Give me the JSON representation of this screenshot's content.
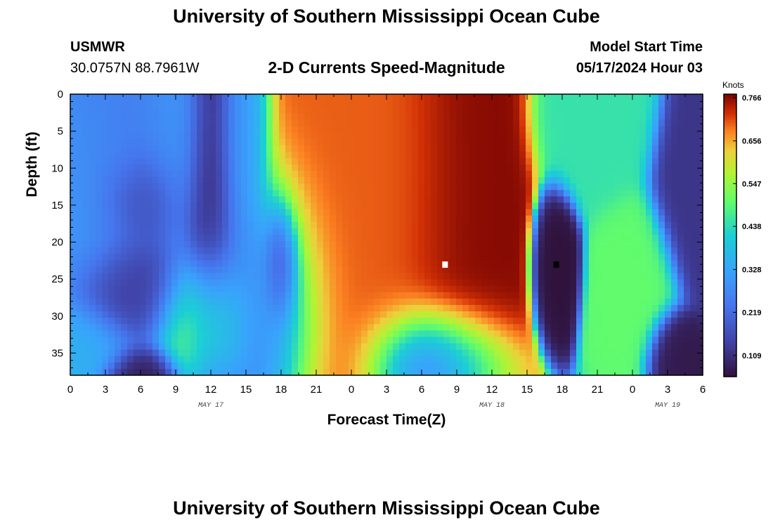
{
  "page": {
    "title_top": "University of Southern Mississippi Ocean Cube",
    "title_bottom": "University of Southern Mississippi Ocean Cube",
    "station_name": "USMWR",
    "station_coords": "30.0757N  88.7961W",
    "subtitle": "2-D Currents Speed-Magnitude",
    "model_label": "Model Start Time",
    "model_time": "05/17/2024 Hour 03"
  },
  "chart_data": {
    "type": "heatmap",
    "title": "2-D Currents Speed-Magnitude",
    "xlabel": "Forecast Time(Z)",
    "ylabel": "Depth (ft)",
    "x_ticks": [
      "0",
      "3",
      "6",
      "9",
      "12",
      "15",
      "18",
      "21",
      "0",
      "3",
      "6",
      "9",
      "12",
      "15",
      "18",
      "21",
      "0",
      "3",
      "6"
    ],
    "x_range_hours": [
      0,
      54
    ],
    "date_labels": [
      {
        "label": "MAY 17",
        "hour": 12
      },
      {
        "label": "MAY 18",
        "hour": 36
      },
      {
        "label": "MAY 19",
        "hour": 51
      }
    ],
    "y_ticks": [
      0,
      5,
      10,
      15,
      20,
      25,
      30,
      35
    ],
    "y_range": [
      0,
      38
    ],
    "y_inverted": true,
    "colorbar": {
      "unit": "Knots",
      "ticks": [
        0.766,
        0.656,
        0.547,
        0.438,
        0.328,
        0.219,
        0.109
      ],
      "range": [
        0.055,
        0.775
      ]
    },
    "max_marker": {
      "hour": 32,
      "depth": 23,
      "color": "#ffffff"
    },
    "min_marker": {
      "hour": 41.5,
      "depth": 23,
      "color": "#000000"
    },
    "field_features": [
      {
        "hour": 1.0,
        "depth": 14,
        "sx": 3,
        "sy": 8,
        "value": 0.3
      },
      {
        "hour": 0.5,
        "depth": 34,
        "sx": 2.5,
        "sy": 3,
        "value": 0.35
      },
      {
        "hour": 4.5,
        "depth": 7,
        "sx": 3,
        "sy": 7,
        "value": 0.25
      },
      {
        "hour": 6.0,
        "depth": 14,
        "sx": 2,
        "sy": 3.5,
        "value": 0.12
      },
      {
        "hour": 5.5,
        "depth": 26,
        "sx": 2.5,
        "sy": 4,
        "value": 0.12
      },
      {
        "hour": 6.0,
        "depth": 38,
        "sx": 1.5,
        "sy": 2,
        "value": 0.07
      },
      {
        "hour": 9.0,
        "depth": 6,
        "sx": 1.5,
        "sy": 8,
        "value": 0.3
      },
      {
        "hour": 12.0,
        "depth": 12,
        "sx": 1.2,
        "sy": 12,
        "value": 0.08
      },
      {
        "hour": 11.5,
        "depth": 30,
        "sx": 2.2,
        "sy": 4.5,
        "value": 0.55
      },
      {
        "hour": 14.5,
        "depth": 7,
        "sx": 1.2,
        "sy": 8,
        "value": 0.3
      },
      {
        "hour": 15.5,
        "depth": 27,
        "sx": 3,
        "sy": 8,
        "value": 0.24
      },
      {
        "hour": 18.0,
        "depth": 23,
        "sx": 0.8,
        "sy": 4,
        "value": 0.08
      },
      {
        "hour": 24.0,
        "depth": 18,
        "sx": 4,
        "sy": 14,
        "value": 0.7
      },
      {
        "hour": 28.0,
        "depth": 14,
        "sx": 2.5,
        "sy": 12,
        "value": 0.7
      },
      {
        "hour": 30.5,
        "depth": 36,
        "sx": 2.5,
        "sy": 4,
        "value": 0.14
      },
      {
        "hour": 32.5,
        "depth": 16,
        "sx": 2.5,
        "sy": 14,
        "value": 0.77
      },
      {
        "hour": 41.5,
        "depth": 23,
        "sx": 0.8,
        "sy": 4,
        "value": 0.055
      },
      {
        "hour": 45.0,
        "depth": 3,
        "sx": 2,
        "sy": 5,
        "value": 0.45
      },
      {
        "hour": 48.0,
        "depth": 26,
        "sx": 1.5,
        "sy": 5,
        "value": 0.5
      },
      {
        "hour": 51.5,
        "depth": 35,
        "sx": 1,
        "sy": 2.5,
        "value": 0.07
      },
      {
        "hour": 53.5,
        "depth": 12,
        "sx": 1.5,
        "sy": 6,
        "value": 0.12
      }
    ]
  }
}
